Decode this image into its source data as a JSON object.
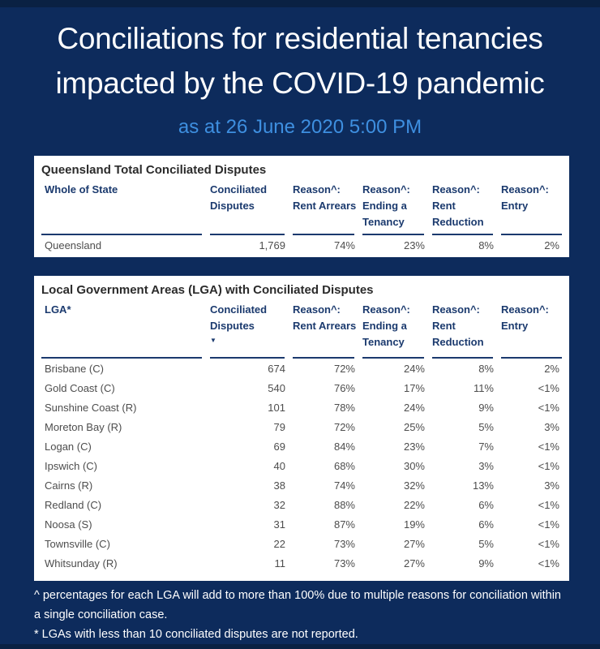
{
  "report": {
    "title_line1": "Conciliations for residential tenancies",
    "title_line2": "impacted by the COVID-19 pandemic",
    "subtitle": "as at 26 June 2020 5:00 PM"
  },
  "chart_data": [
    {
      "type": "table",
      "title": "Queensland Total Conciliated Disputes",
      "columns": [
        "Whole of State",
        "Conciliated Disputes",
        "Reason^: Rent Arrears",
        "Reason^: Ending a Tenancy",
        "Reason^: Rent Reduction",
        "Reason^: Entry"
      ],
      "rows": [
        [
          "Queensland",
          "1,769",
          "74%",
          "23%",
          "8%",
          "2%"
        ]
      ]
    },
    {
      "type": "table",
      "title": "Local Government Areas (LGA) with Conciliated Disputes",
      "columns": [
        "LGA*",
        "Conciliated Disputes",
        "Reason^: Rent Arrears",
        "Reason^: Ending a Tenancy",
        "Reason^: Rent Reduction",
        "Reason^: Entry"
      ],
      "sort": {
        "column_index": 1,
        "direction": "descending",
        "icon": "▼"
      },
      "rows": [
        [
          "Brisbane (C)",
          "674",
          "72%",
          "24%",
          "8%",
          "2%"
        ],
        [
          "Gold Coast (C)",
          "540",
          "76%",
          "17%",
          "11%",
          "<1%"
        ],
        [
          "Sunshine Coast (R)",
          "101",
          "78%",
          "24%",
          "9%",
          "<1%"
        ],
        [
          "Moreton Bay (R)",
          "79",
          "72%",
          "25%",
          "5%",
          "3%"
        ],
        [
          "Logan (C)",
          "69",
          "84%",
          "23%",
          "7%",
          "<1%"
        ],
        [
          "Ipswich (C)",
          "40",
          "68%",
          "30%",
          "3%",
          "<1%"
        ],
        [
          "Cairns (R)",
          "38",
          "74%",
          "32%",
          "13%",
          "3%"
        ],
        [
          "Redland (C)",
          "32",
          "88%",
          "22%",
          "6%",
          "<1%"
        ],
        [
          "Noosa (S)",
          "31",
          "87%",
          "19%",
          "6%",
          "<1%"
        ],
        [
          "Townsville (C)",
          "22",
          "73%",
          "27%",
          "5%",
          "<1%"
        ],
        [
          "Whitsunday (R)",
          "11",
          "73%",
          "27%",
          "9%",
          "<1%"
        ]
      ]
    }
  ],
  "footnotes": [
    "^ percentages for each LGA will add to more than 100% due to multiple reasons for conciliation within a single conciliation case.",
    "* LGAs with less than 10 conciliated disputes are not reported."
  ],
  "colors": {
    "background": "#0D2B5C",
    "edge_strip": "#0A2143",
    "subtitle_blue": "#3E8FE0",
    "table_header_navy": "#1B3A6E",
    "body_text_gray": "#4D4D4D",
    "card_background": "#FFFFFF"
  }
}
